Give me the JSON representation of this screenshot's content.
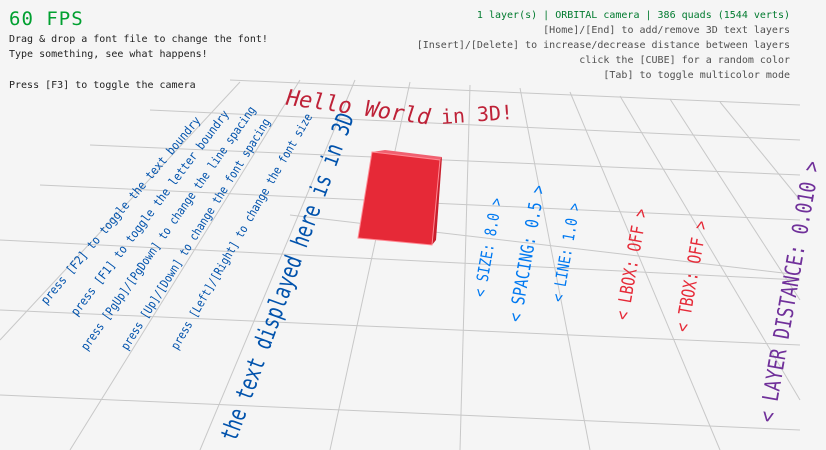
{
  "hud": {
    "fps": "60 FPS",
    "left_lines": [
      "Drag & drop a font file to change the font!",
      "Type something, see what happens!",
      "Press [F3] to toggle the camera"
    ],
    "status": "1 layer(s) | ORBITAL camera |  386 quads (1544 verts)",
    "right_lines": [
      "[Home]/[End] to add/remove 3D text layers",
      "[Insert]/[Delete] to increase/decrease distance between layers",
      "click the [CUBE] for a random color",
      "[Tab] to toggle multicolor mode"
    ]
  },
  "scene": {
    "hello_text": "Hello World",
    "in3d_text": "in 3D!",
    "info_text": "the text displayed here is in 3D",
    "help_lines": [
      "press [Left]/[Right] to change the font size",
      "press [Up]/[Down] to change the font spacing",
      "press [PgUp]/[PgDown] to change the line spacing",
      "press [F1] to toggle the letter boundry",
      "press [F2] to toggle the text boundry"
    ],
    "options": [
      {
        "label": "< SIZE: 8.0 >",
        "color": "#0079f1"
      },
      {
        "label": "< SPACING: 0.5 >",
        "color": "#0079f1"
      },
      {
        "label": "< LINE: 1.0 >",
        "color": "#0079f1"
      },
      {
        "label": "< LBOX: OFF >",
        "color": "#e62937"
      },
      {
        "label": "< TBOX: OFF >",
        "color": "#e62937"
      },
      {
        "label": "< LAYER DISTANCE: 0.010 >",
        "color": "#70309a"
      }
    ],
    "colors": {
      "cube": "#e62937",
      "hello": "#be2137",
      "info": "#0052ac",
      "fps": "#00a030",
      "status": "#007a2e"
    }
  }
}
